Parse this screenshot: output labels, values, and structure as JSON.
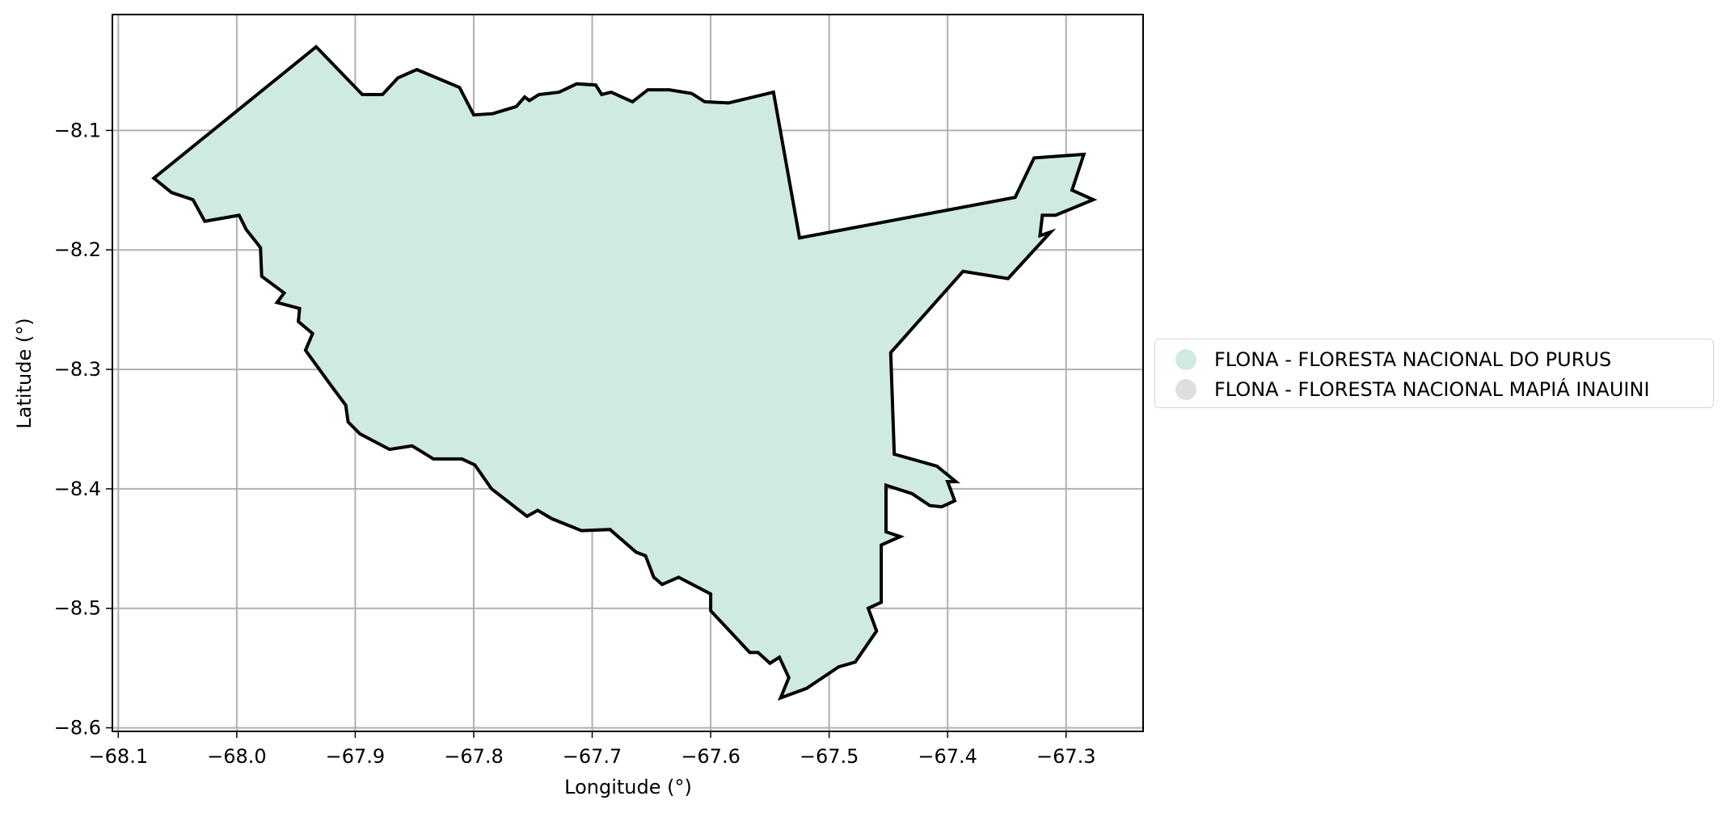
{
  "chart_data": {
    "type": "map",
    "title": "",
    "xlabel": "Longitude (°)",
    "ylabel": "Latitude (°)",
    "xlim": [
      -68.105,
      -67.235
    ],
    "ylim": [
      -8.603,
      -8.003
    ],
    "grid": true,
    "x_ticks": [
      {
        "value": -68.1,
        "label": "−68.1"
      },
      {
        "value": -68.0,
        "label": "−68.0"
      },
      {
        "value": -67.9,
        "label": "−67.9"
      },
      {
        "value": -67.8,
        "label": "−67.8"
      },
      {
        "value": -67.7,
        "label": "−67.7"
      },
      {
        "value": -67.6,
        "label": "−67.6"
      },
      {
        "value": -67.5,
        "label": "−67.5"
      },
      {
        "value": -67.4,
        "label": "−67.4"
      },
      {
        "value": -67.3,
        "label": "−67.3"
      }
    ],
    "y_ticks": [
      {
        "value": -8.1,
        "label": "−8.1"
      },
      {
        "value": -8.2,
        "label": "−8.2"
      },
      {
        "value": -8.3,
        "label": "−8.3"
      },
      {
        "value": -8.4,
        "label": "−8.4"
      },
      {
        "value": -8.5,
        "label": "−8.5"
      },
      {
        "value": -8.6,
        "label": "−8.6"
      }
    ],
    "legend_placement": "center-right, outside plot",
    "legend": [
      {
        "label": "FLONA - FLORESTA NACIONAL DO PURUS",
        "color": "#cfeadf"
      },
      {
        "label": "FLONA - FLORESTA NACIONAL MAPIÁ INAUINI",
        "color": "#dedede"
      }
    ],
    "boundary_color": "#000000",
    "fill_color": "#cfeadf",
    "boundary": [
      [
        -68.07,
        -8.14
      ],
      [
        -68.055,
        -8.152
      ],
      [
        -68.037,
        -8.158
      ],
      [
        -68.027,
        -8.176
      ],
      [
        -67.998,
        -8.171
      ],
      [
        -67.992,
        -8.183
      ],
      [
        -67.98,
        -8.198
      ],
      [
        -67.979,
        -8.222
      ],
      [
        -67.96,
        -8.236
      ],
      [
        -67.966,
        -8.244
      ],
      [
        -67.947,
        -8.249
      ],
      [
        -67.948,
        -8.26
      ],
      [
        -67.936,
        -8.27
      ],
      [
        -67.942,
        -8.284
      ],
      [
        -67.92,
        -8.314
      ],
      [
        -67.908,
        -8.33
      ],
      [
        -67.906,
        -8.344
      ],
      [
        -67.896,
        -8.354
      ],
      [
        -67.871,
        -8.367
      ],
      [
        -67.852,
        -8.364
      ],
      [
        -67.834,
        -8.375
      ],
      [
        -67.81,
        -8.375
      ],
      [
        -67.799,
        -8.38
      ],
      [
        -67.785,
        -8.4
      ],
      [
        -67.755,
        -8.423
      ],
      [
        -67.746,
        -8.418
      ],
      [
        -67.734,
        -8.425
      ],
      [
        -67.709,
        -8.435
      ],
      [
        -67.685,
        -8.434
      ],
      [
        -67.663,
        -8.453
      ],
      [
        -67.655,
        -8.456
      ],
      [
        -67.648,
        -8.474
      ],
      [
        -67.641,
        -8.48
      ],
      [
        -67.627,
        -8.474
      ],
      [
        -67.6,
        -8.488
      ],
      [
        -67.6,
        -8.502
      ],
      [
        -67.583,
        -8.52
      ],
      [
        -67.567,
        -8.537
      ],
      [
        -67.56,
        -8.537
      ],
      [
        -67.55,
        -8.546
      ],
      [
        -67.542,
        -8.541
      ],
      [
        -67.534,
        -8.558
      ],
      [
        -67.541,
        -8.575
      ],
      [
        -67.519,
        -8.567
      ],
      [
        -67.492,
        -8.549
      ],
      [
        -67.478,
        -8.545
      ],
      [
        -67.46,
        -8.519
      ],
      [
        -67.467,
        -8.5
      ],
      [
        -67.456,
        -8.495
      ],
      [
        -67.456,
        -8.447
      ],
      [
        -67.44,
        -8.44
      ],
      [
        -67.452,
        -8.436
      ],
      [
        -67.452,
        -8.397
      ],
      [
        -67.43,
        -8.404
      ],
      [
        -67.415,
        -8.414
      ],
      [
        -67.405,
        -8.415
      ],
      [
        -67.394,
        -8.41
      ],
      [
        -67.4,
        -8.394
      ],
      [
        -67.393,
        -8.394
      ],
      [
        -67.409,
        -8.381
      ],
      [
        -67.445,
        -8.371
      ],
      [
        -67.448,
        -8.286
      ],
      [
        -67.387,
        -8.218
      ],
      [
        -67.349,
        -8.224
      ],
      [
        -67.313,
        -8.185
      ],
      [
        -67.322,
        -8.188
      ],
      [
        -67.32,
        -8.171
      ],
      [
        -67.309,
        -8.171
      ],
      [
        -67.277,
        -8.158
      ],
      [
        -67.295,
        -8.15
      ],
      [
        -67.285,
        -8.12
      ],
      [
        -67.327,
        -8.123
      ],
      [
        -67.343,
        -8.156
      ],
      [
        -67.525,
        -8.19
      ],
      [
        -67.547,
        -8.068
      ],
      [
        -67.585,
        -8.077
      ],
      [
        -67.605,
        -8.076
      ],
      [
        -67.616,
        -8.069
      ],
      [
        -67.635,
        -8.066
      ],
      [
        -67.653,
        -8.066
      ],
      [
        -67.666,
        -8.076
      ],
      [
        -67.684,
        -8.068
      ],
      [
        -67.692,
        -8.07
      ],
      [
        -67.697,
        -8.062
      ],
      [
        -67.713,
        -8.061
      ],
      [
        -67.728,
        -8.068
      ],
      [
        -67.745,
        -8.07
      ],
      [
        -67.753,
        -8.075
      ],
      [
        -67.757,
        -8.072
      ],
      [
        -67.764,
        -8.08
      ],
      [
        -67.784,
        -8.086
      ],
      [
        -67.8,
        -8.087
      ],
      [
        -67.812,
        -8.064
      ],
      [
        -67.848,
        -8.049
      ],
      [
        -67.864,
        -8.056
      ],
      [
        -67.877,
        -8.07
      ],
      [
        -67.894,
        -8.07
      ],
      [
        -67.933,
        -8.03
      ]
    ]
  }
}
